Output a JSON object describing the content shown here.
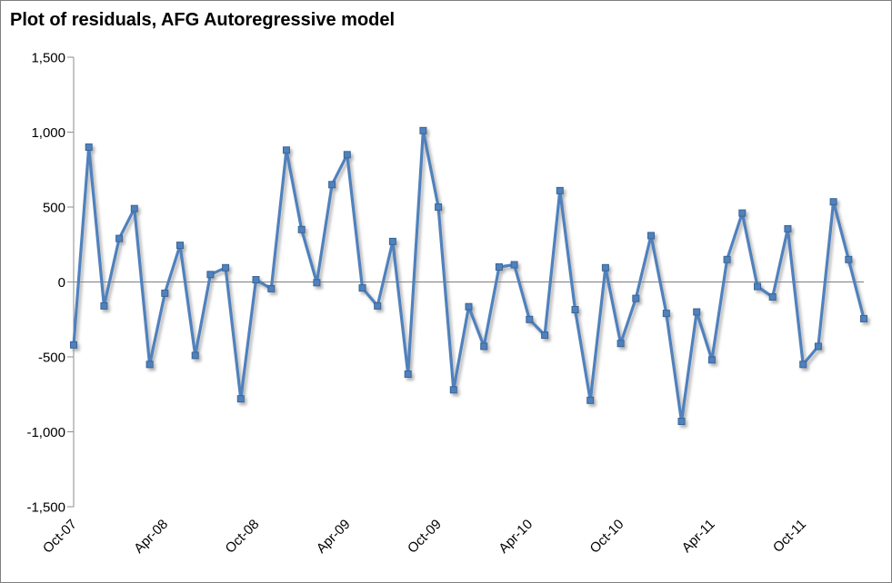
{
  "window": {
    "background": "#ffffff",
    "border_color": "#7f7f7f"
  },
  "chart_data": {
    "type": "line",
    "title": "Plot of residuals, AFG Autoregressive model",
    "xlabel": "",
    "ylabel": "",
    "ylim": [
      -1500,
      1500
    ],
    "y_ticks": [
      1500,
      1000,
      500,
      0,
      -500,
      -1000,
      -1500
    ],
    "y_tick_labels": [
      "1,500",
      "1,000",
      "500",
      "0",
      "-500",
      "-1,000",
      "-1,500"
    ],
    "x_tick_every": 6,
    "x_tick_labels_shown": [
      "Oct-07",
      "Apr-08",
      "Oct-08",
      "Apr-09",
      "Oct-09",
      "Apr-10",
      "Oct-10",
      "Apr-11",
      "Oct-11"
    ],
    "grid": "zero-line-only",
    "legend": "none",
    "categories": [
      "Oct-07",
      "Nov-07",
      "Dec-07",
      "Jan-08",
      "Feb-08",
      "Mar-08",
      "Apr-08",
      "May-08",
      "Jun-08",
      "Jul-08",
      "Aug-08",
      "Sep-08",
      "Oct-08",
      "Nov-08",
      "Dec-08",
      "Jan-09",
      "Feb-09",
      "Mar-09",
      "Apr-09",
      "May-09",
      "Jun-09",
      "Jul-09",
      "Aug-09",
      "Sep-09",
      "Oct-09",
      "Nov-09",
      "Dec-09",
      "Jan-10",
      "Feb-10",
      "Mar-10",
      "Apr-10",
      "May-10",
      "Jun-10",
      "Jul-10",
      "Aug-10",
      "Sep-10",
      "Oct-10",
      "Nov-10",
      "Dec-10",
      "Jan-11",
      "Feb-11",
      "Mar-11",
      "Apr-11",
      "May-11",
      "Jun-11",
      "Jul-11",
      "Aug-11",
      "Sep-11",
      "Oct-11",
      "Nov-11",
      "Dec-11",
      "Jan-12",
      "Feb-12"
    ],
    "series": [
      {
        "name": "Residuals",
        "color": "#4F81BD",
        "marker": "square",
        "marker_border_color": "#3A6597",
        "values": [
          -420,
          900,
          -160,
          290,
          490,
          -550,
          -75,
          245,
          -490,
          50,
          95,
          -780,
          15,
          -45,
          880,
          350,
          -5,
          650,
          850,
          -40,
          -160,
          270,
          -615,
          1010,
          500,
          -720,
          -165,
          -430,
          100,
          115,
          -250,
          -355,
          610,
          -185,
          -790,
          95,
          -410,
          -110,
          310,
          -210,
          -930,
          -200,
          -520,
          150,
          460,
          -30,
          -100,
          355,
          -550,
          -430,
          535,
          150,
          -245
        ]
      }
    ],
    "axis_color": "#8c8c8c",
    "zero_line_color": "#7f7f7f",
    "label_color": "#000000"
  }
}
